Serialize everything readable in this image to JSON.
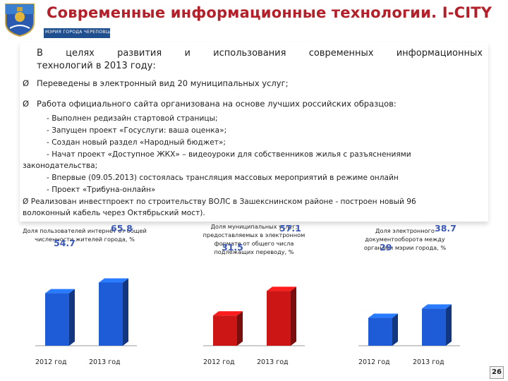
{
  "header": {
    "title": "Современные информационные технологии. I-CITY",
    "org": "МЭРИЯ ГОРОДА ЧЕРЕПОВЦА"
  },
  "intro": {
    "words": [
      "В",
      "целях",
      "развития",
      "и",
      "использования",
      "современных",
      "информационных"
    ],
    "line2": "технологий в 2013 году:"
  },
  "bullets": [
    "Переведены в электронный вид 20 муниципальных услуг;",
    "Работа официального сайта организована на основе лучших российских образцов:"
  ],
  "sub_items": [
    "- Выполнен редизайн стартовой страницы;",
    "- Запущен проект «Госуслуги: ваша оценка»;",
    "- Создан новый раздел «Народный бюджет»;",
    "- Начат проект «Доступное ЖКХ» – видеоуроки для собственников жилья с разъяснениями",
    "законодательства;",
    "- Впервые (09.05.2013) состоялась трансляция массовых мероприятий в режиме онлайн",
    "- Проект «Трибуна-онлайн»",
    "Ø Реализован инвестпроект по строительству ВОЛС в Зашекснинском районе - построен  новый  96",
    "волоконный кабель через Октябрьский мост)."
  ],
  "chart_data": [
    {
      "type": "bar",
      "title": "Доля пользователей интернет от общей численности жителей города, %",
      "categories": [
        "2012 год",
        "2013 год"
      ],
      "values": [
        54.7,
        65.8
      ],
      "colors": [
        "#1e5bd6",
        "#1e5bd6"
      ]
    },
    {
      "type": "bar",
      "title": "Доля муниципальных услуг, предоставляемых в электронном формате от общего числа подлежащих переводу, %",
      "categories": [
        "2012 год",
        "2013 год"
      ],
      "values": [
        31.5,
        57.1
      ],
      "colors": [
        "#cc1515",
        "#cc1515"
      ]
    },
    {
      "type": "bar",
      "title": "Доля электронного документооборота между органами мэрии города, %",
      "categories": [
        "2012 год",
        "2013 год"
      ],
      "values": [
        29,
        38.7
      ],
      "colors": [
        "#1e5bd6",
        "#1e5bd6"
      ]
    }
  ],
  "page_number": "26"
}
